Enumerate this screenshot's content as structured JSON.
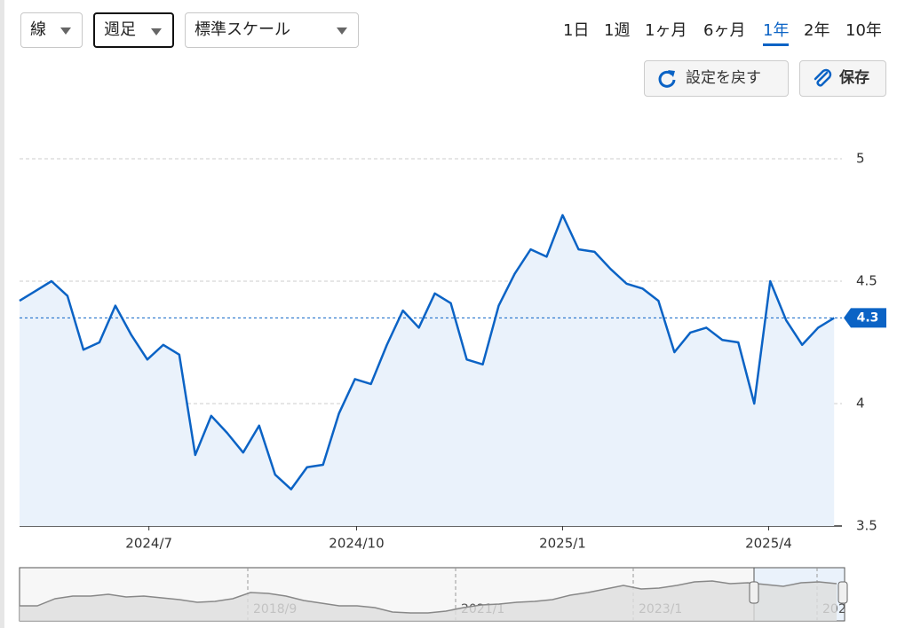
{
  "controls": {
    "chart_style": "線",
    "interval": "週足",
    "scale": "標準スケール",
    "ranges": [
      "1日",
      "1週",
      "1ヶ月",
      "6ヶ月",
      "1年",
      "2年",
      "10年"
    ],
    "reset": "設定を戻す",
    "save": "保存"
  },
  "chart_data": {
    "type": "line",
    "color": "#0b63c5",
    "values": [
      4.42,
      4.46,
      4.5,
      4.44,
      4.22,
      4.25,
      4.4,
      4.28,
      4.18,
      4.24,
      4.2,
      3.79,
      3.95,
      3.88,
      3.8,
      3.91,
      3.71,
      3.65,
      3.74,
      3.75,
      3.96,
      4.1,
      4.08,
      4.24,
      4.38,
      4.31,
      4.45,
      4.41,
      4.18,
      4.16,
      4.4,
      4.53,
      4.63,
      4.6,
      4.77,
      4.63,
      4.62,
      4.55,
      4.49,
      4.47,
      4.42,
      4.21,
      4.29,
      4.31,
      4.26,
      4.25,
      4.0,
      4.5,
      4.34,
      4.24,
      4.31,
      4.35
    ],
    "last_label": "4.3",
    "xlim": [
      0,
      51.1
    ],
    "xticks": [
      {
        "value": 8.1,
        "label": "2024/7"
      },
      {
        "value": 21.1,
        "label": "2024/10"
      },
      {
        "value": 34.0,
        "label": "2025/1"
      },
      {
        "value": 46.9,
        "label": "2025/4"
      }
    ],
    "ylim": [
      3.5,
      5
    ],
    "yticks": [
      3.5,
      4,
      4.5,
      5
    ],
    "grid": true,
    "navigator": {
      "values": [
        1.38,
        1.38,
        2.32,
        2.67,
        2.67,
        2.9,
        2.55,
        2.67,
        2.43,
        2.2,
        1.85,
        1.97,
        2.32,
        3.13,
        3.02,
        2.67,
        2.08,
        1.73,
        1.38,
        1.38,
        1.15,
        0.57,
        0.45,
        0.45,
        0.68,
        1.15,
        1.5,
        1.62,
        1.85,
        1.97,
        2.2,
        2.78,
        3.13,
        3.6,
        4.07,
        3.6,
        3.72,
        4.07,
        4.53,
        4.65,
        4.3,
        4.42,
        4.18,
        3.95,
        4.42,
        4.53,
        4.3
      ],
      "xlim": [
        0,
        46.45
      ],
      "ylim": [
        -0.6,
        6.4
      ],
      "xticks": [
        {
          "value": 12.85,
          "label": "2018/9"
        },
        {
          "value": 24.55,
          "label": "2021/1"
        },
        {
          "value": 34.55,
          "label": "2023/1"
        },
        {
          "value": 44.9,
          "label": "202"
        }
      ]
    }
  }
}
